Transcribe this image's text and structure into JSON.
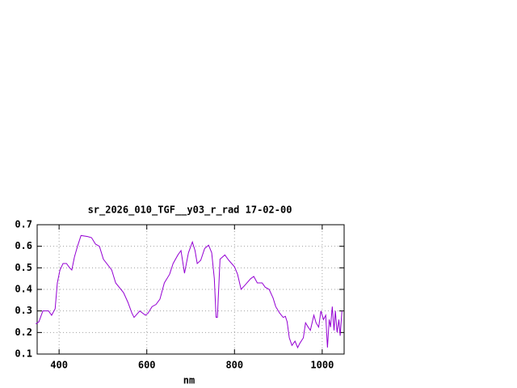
{
  "chart_data": {
    "type": "line",
    "title": "sr_2026_010_TGF__y03_r_rad 17-02-00",
    "x_label": "nm",
    "x": [
      347,
      354,
      363,
      376,
      383,
      391,
      396,
      402,
      409,
      417,
      424,
      429,
      435,
      442,
      450,
      465,
      474,
      483,
      492,
      501,
      520,
      529,
      547,
      557,
      566,
      571,
      584,
      597,
      603,
      612,
      621,
      630,
      640,
      652,
      660,
      671,
      678,
      686,
      695,
      704,
      710,
      715,
      723,
      732,
      741,
      748,
      754,
      758,
      761,
      767,
      778,
      787,
      800,
      807,
      815,
      824,
      837,
      844,
      852,
      863,
      870,
      879,
      888,
      894,
      903,
      911,
      916,
      920,
      925,
      931,
      938,
      944,
      949,
      957,
      962,
      968,
      973,
      981,
      986,
      992,
      997,
      1003,
      1008,
      1012,
      1016,
      1019,
      1023,
      1027,
      1030,
      1034,
      1038,
      1041,
      1045
    ],
    "series": [
      {
        "color": "#9400d3",
        "values": [
          0.24,
          0.25,
          0.3,
          0.3,
          0.28,
          0.31,
          0.43,
          0.49,
          0.52,
          0.52,
          0.5,
          0.49,
          0.55,
          0.6,
          0.65,
          0.645,
          0.64,
          0.61,
          0.6,
          0.54,
          0.49,
          0.43,
          0.385,
          0.34,
          0.29,
          0.27,
          0.3,
          0.28,
          0.29,
          0.32,
          0.33,
          0.355,
          0.43,
          0.47,
          0.52,
          0.56,
          0.58,
          0.475,
          0.57,
          0.62,
          0.58,
          0.52,
          0.535,
          0.59,
          0.605,
          0.57,
          0.45,
          0.27,
          0.27,
          0.54,
          0.56,
          0.535,
          0.505,
          0.47,
          0.4,
          0.42,
          0.45,
          0.46,
          0.43,
          0.43,
          0.41,
          0.4,
          0.36,
          0.32,
          0.29,
          0.27,
          0.275,
          0.25,
          0.175,
          0.14,
          0.16,
          0.13,
          0.15,
          0.175,
          0.245,
          0.225,
          0.21,
          0.28,
          0.245,
          0.225,
          0.3,
          0.26,
          0.28,
          0.13,
          0.26,
          0.225,
          0.32,
          0.21,
          0.3,
          0.2,
          0.26,
          0.185,
          0.3
        ]
      }
    ],
    "xlim": [
      350,
      1050
    ],
    "xticks": [
      400,
      600,
      800,
      1000
    ],
    "ylim": [
      0.1,
      0.7
    ],
    "yticks": [
      0.1,
      0.2,
      0.3,
      0.4,
      0.5,
      0.6,
      0.7
    ],
    "grid": true
  }
}
